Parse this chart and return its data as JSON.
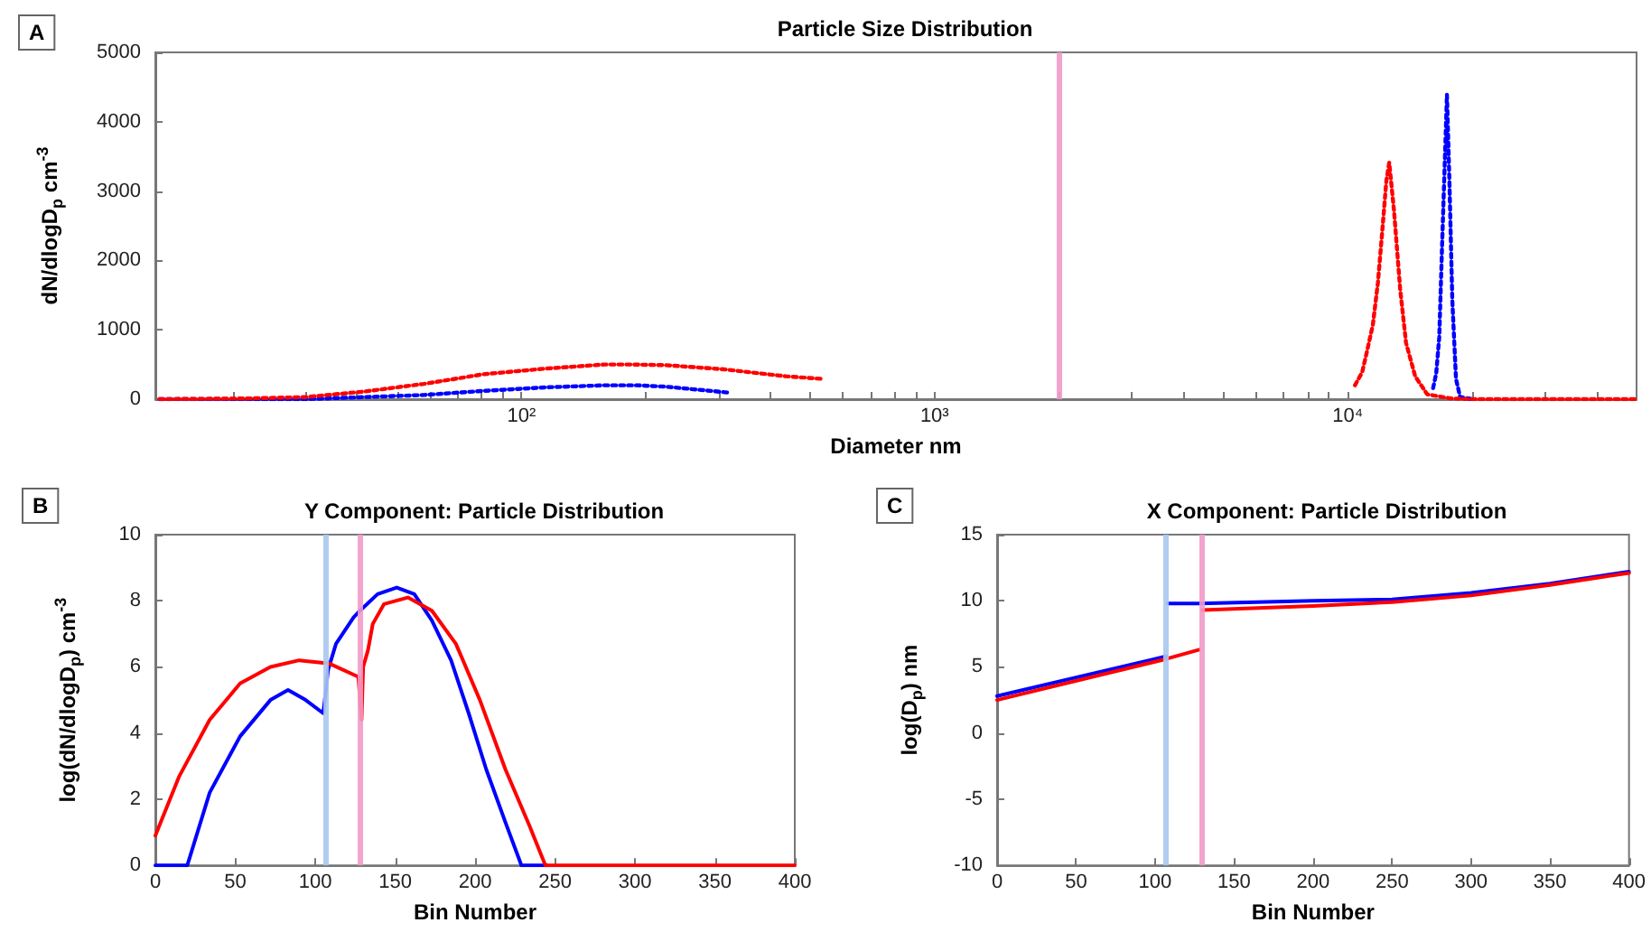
{
  "chart_data": [
    {
      "type": "line",
      "title": "Particle Size Distribution",
      "xlabel": "Diameter nm",
      "ylabel": "dN/dlogD$_{p}$ cm$^{-3}$",
      "annotations": [
        "A"
      ],
      "log": "x",
      "line_style": "dotted",
      "xlim": [
        13,
        50000
      ],
      "xticks": [
        {
          "value": 20,
          "label": null
        },
        {
          "value": 30,
          "label": null
        },
        {
          "value": 40,
          "label": null
        },
        {
          "value": 50,
          "label": null
        },
        {
          "value": 60,
          "label": null
        },
        {
          "value": 70,
          "label": null
        },
        {
          "value": 80,
          "label": null
        },
        {
          "value": 90,
          "label": null
        },
        {
          "value": 100,
          "label": "10²"
        },
        {
          "value": 200,
          "label": null
        },
        {
          "value": 300,
          "label": null
        },
        {
          "value": 400,
          "label": null
        },
        {
          "value": 500,
          "label": null
        },
        {
          "value": 600,
          "label": null
        },
        {
          "value": 700,
          "label": null
        },
        {
          "value": 800,
          "label": null
        },
        {
          "value": 900,
          "label": null
        },
        {
          "value": 1000,
          "label": "10³"
        },
        {
          "value": 2000,
          "label": null
        },
        {
          "value": 3000,
          "label": null
        },
        {
          "value": 4000,
          "label": null
        },
        {
          "value": 5000,
          "label": null
        },
        {
          "value": 6000,
          "label": null
        },
        {
          "value": 7000,
          "label": null
        },
        {
          "value": 8000,
          "label": null
        },
        {
          "value": 9000,
          "label": null
        },
        {
          "value": 10000,
          "label": "10⁴"
        },
        {
          "value": 20000,
          "label": null
        },
        {
          "value": 30000,
          "label": null
        },
        {
          "value": 40000,
          "label": null
        }
      ],
      "ylim": [
        0,
        5000
      ],
      "yticks": [
        0,
        1000,
        2000,
        3000,
        4000,
        5000
      ],
      "ref_lines": [
        {
          "axis": "x",
          "value": 2000,
          "color": "#f29ac9"
        }
      ],
      "series": [
        {
          "color": "#0000ff",
          "x": [
            13.3,
            30,
            41.7,
            58,
            81,
            114,
            159,
            190,
            224,
            311,
            321,
            3000,
            16090,
            16370,
            16650,
            16930,
            17210,
            17380,
            17620,
            17910,
            18280,
            18710,
            20000
          ],
          "values": [
            0,
            0,
            30,
            60,
            120,
            170,
            200,
            200,
            180,
            100,
            90,
            null,
            160,
            370,
            890,
            2280,
            3590,
            4390,
            3150,
            1420,
            290,
            30,
            0
          ]
        },
        {
          "color": "#ff0000",
          "x": [
            13.3,
            21.5,
            30,
            41.7,
            58,
            81,
            114,
            159,
            182,
            224,
            310,
            436,
            541,
            3000,
            10410,
            10840,
            11200,
            11500,
            11830,
            12100,
            12400,
            12600,
            12940,
            13390,
            13840,
            14560,
            15570,
            17790,
            20000,
            30000,
            40000,
            50000
          ],
          "values": [
            0,
            10,
            30,
            110,
            220,
            360,
            440,
            500,
            500,
            490,
            430,
            330,
            290,
            null,
            200,
            390,
            760,
            1070,
            1680,
            2370,
            3150,
            3410,
            2720,
            1590,
            810,
            330,
            70,
            10,
            0,
            0,
            0,
            0
          ]
        }
      ]
    },
    {
      "type": "line",
      "title": "Y Component: Particle Distribution",
      "xlabel": "Bin Number",
      "ylabel": "log(dN/dlogD$_{p}$) cm$^{-3}$",
      "annotations": [
        "B"
      ],
      "xlim": [
        0,
        400
      ],
      "xticks": [
        0,
        50,
        100,
        150,
        200,
        250,
        300,
        350,
        400
      ],
      "ylim": [
        0,
        10
      ],
      "yticks": [
        0,
        2,
        4,
        6,
        8,
        10
      ],
      "ref_lines": [
        {
          "axis": "x",
          "value": 107,
          "color": "#a8c8ee"
        },
        {
          "axis": "x",
          "value": 128,
          "color": "#f29ac9"
        }
      ],
      "series": [
        {
          "color": "#0000ff",
          "x": [
            0,
            20,
            34,
            53,
            72,
            83,
            94,
            105,
            106,
            108,
            113,
            124,
            128,
            139,
            151,
            162,
            173,
            185,
            196,
            207,
            219,
            229,
            245
          ],
          "values": [
            0,
            0,
            2.2,
            3.9,
            5,
            5.3,
            5,
            4.6,
            5,
            5.9,
            6.7,
            7.5,
            7.7,
            8.2,
            8.4,
            8.2,
            7.4,
            6.2,
            4.6,
            2.9,
            1.3,
            0,
            0
          ]
        },
        {
          "color": "#ff0000",
          "x": [
            0,
            15,
            34,
            53,
            72,
            90,
            109,
            127,
            129,
            130,
            133,
            136,
            143,
            158,
            173,
            188,
            203,
            219,
            234,
            244,
            300,
            400
          ],
          "values": [
            0.9,
            2.7,
            4.4,
            5.5,
            6,
            6.2,
            6.1,
            5.7,
            4.4,
            6,
            6.5,
            7.3,
            7.9,
            8.1,
            7.7,
            6.7,
            5,
            2.9,
            1.2,
            0,
            0,
            0
          ]
        }
      ]
    },
    {
      "type": "line",
      "title": "X Component: Particle Distribution",
      "xlabel": "Bin Number",
      "ylabel": "log(D$_{p}$) nm",
      "annotations": [
        "C"
      ],
      "xlim": [
        0,
        400
      ],
      "xticks": [
        0,
        50,
        100,
        150,
        200,
        250,
        300,
        350,
        400
      ],
      "ylim": [
        -10,
        15
      ],
      "yticks": [
        -10,
        -5,
        0,
        5,
        10,
        15
      ],
      "ref_lines": [
        {
          "axis": "x",
          "value": 107,
          "color": "#a8c8ee"
        },
        {
          "axis": "x",
          "value": 129,
          "color": "#f29ac9"
        }
      ],
      "series": [
        {
          "color": "#0000ff",
          "x": [
            0,
            107,
            107.5,
            108,
            128,
            200,
            250,
            300,
            350,
            400
          ],
          "values": [
            2.8,
            5.8,
            null,
            9.8,
            9.8,
            10,
            10.1,
            10.6,
            11.3,
            12.2
          ]
        },
        {
          "color": "#ff0000",
          "x": [
            0,
            107,
            128,
            129,
            130,
            200,
            250,
            300,
            350,
            400
          ],
          "values": [
            2.5,
            5.6,
            6.3,
            null,
            9.3,
            9.6,
            9.9,
            10.4,
            11.2,
            12.1
          ]
        }
      ]
    }
  ]
}
